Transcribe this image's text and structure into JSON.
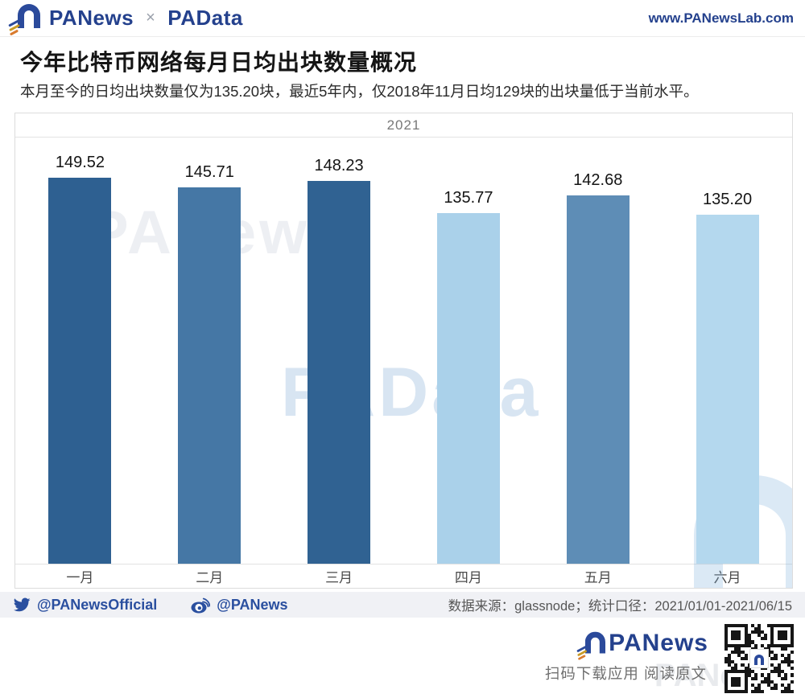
{
  "header": {
    "brand_primary": "PANews",
    "brand_separator": "×",
    "brand_secondary": "PAData",
    "website": "www.PANewsLab.com"
  },
  "article": {
    "title": "今年比特币网络每月日均出块数量概况",
    "subtitle": "本月至今的日均出块数量仅为135.20块，最近5年内，仅2018年11月日均129块的出块量低于当前水平。"
  },
  "chart_data": {
    "type": "bar",
    "title": "2021",
    "categories": [
      "一月",
      "二月",
      "三月",
      "四月",
      "五月",
      "六月"
    ],
    "values": [
      149.52,
      145.71,
      148.23,
      135.77,
      142.68,
      135.2
    ],
    "value_labels": [
      "149.52",
      "145.71",
      "148.23",
      "135.77",
      "142.68",
      "135.20"
    ],
    "bar_colors": [
      "#2e6091",
      "#4577a5",
      "#306292",
      "#aad1ea",
      "#5e8db6",
      "#b4d8ee"
    ],
    "xlabel": "",
    "ylabel": "",
    "ylim": [
      0,
      165
    ],
    "grid": false,
    "legend": null,
    "data_labels_shown": true
  },
  "watermarks": {
    "top": "PANews",
    "center": "PAData"
  },
  "social_bar": {
    "twitter_handle": "@PANewsOfficial",
    "weibo_handle": "@PANews",
    "source_note": "数据来源：glassnode；统计口径：2021/01/01-2021/06/15"
  },
  "footer": {
    "brand": "PANews",
    "caption": "扫码下载应用 阅读原文",
    "watermark": "PANews"
  },
  "colors": {
    "brand_navy": "#24418d",
    "social_link": "#2a4f9f",
    "social_bar_bg": "#f0f1f5",
    "chart_border": "#dcdcdc"
  }
}
